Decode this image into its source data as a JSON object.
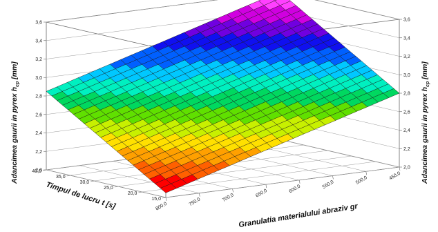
{
  "chart_data": {
    "type": "surface3d",
    "title": "",
    "z_axis": {
      "label_main": "Adancimea gaurii in pyrex h",
      "label_sub": "cp",
      "label_unit": " [mm]",
      "range": [
        2.0,
        3.6
      ],
      "ticks": [
        "2,0",
        "2,2",
        "2,4",
        "2,6",
        "2,8",
        "3,0",
        "3,2",
        "3,4",
        "3,6"
      ]
    },
    "x_axis": {
      "label": "Timpul de lucru t [s]",
      "range": [
        15.0,
        40.0
      ],
      "ticks": [
        "15,0",
        "20,0",
        "25,0",
        "30,0",
        "35,0",
        "40,0"
      ]
    },
    "y_axis": {
      "label": "Granulatia materialului abraziv gr",
      "range": [
        450.0,
        800.0
      ],
      "ticks": [
        "800,0",
        "750,0",
        "700,0",
        "650,0",
        "600,0",
        "550,0",
        "500,0",
        "450,0"
      ]
    },
    "surface_corners": [
      {
        "t": 15.0,
        "gr": 800.0,
        "h": 2.05
      },
      {
        "t": 40.0,
        "gr": 800.0,
        "h": 2.85
      },
      {
        "t": 15.0,
        "gr": 450.0,
        "h": 2.8
      },
      {
        "t": 40.0,
        "gr": 450.0,
        "h": 3.6
      }
    ],
    "colormap": [
      "#ff0000",
      "#ff6000",
      "#ffa000",
      "#ffe000",
      "#c8f000",
      "#60e000",
      "#00d860",
      "#00f0c0",
      "#00c8ff",
      "#0060ff",
      "#1010f0",
      "#7000e0",
      "#d000e0",
      "#ff40ff"
    ],
    "grid": true
  }
}
